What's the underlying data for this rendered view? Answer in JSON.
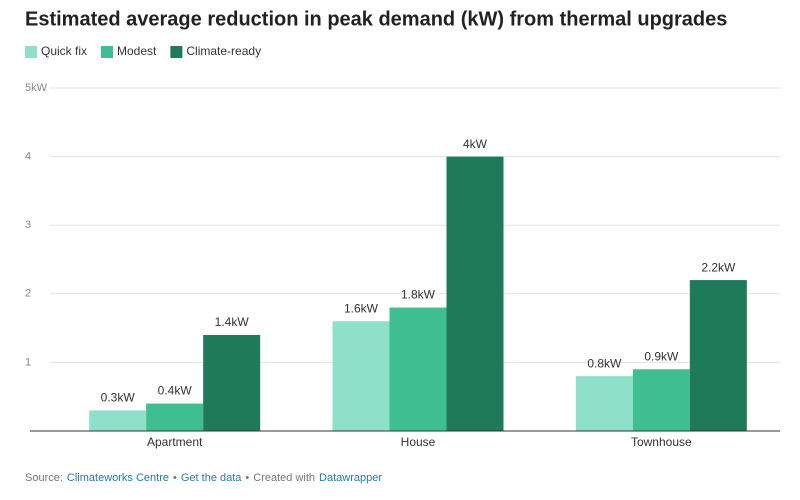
{
  "chart_data": {
    "type": "bar",
    "title": "Estimated average reduction in peak demand (kW) from thermal upgrades",
    "categories": [
      "Apartment",
      "House",
      "Townhouse"
    ],
    "series": [
      {
        "name": "Quick fix",
        "color": "#8fe0c8",
        "values": [
          0.3,
          1.6,
          0.8
        ],
        "value_labels": [
          "0.3kW",
          "1.6kW",
          "0.8kW"
        ]
      },
      {
        "name": "Modest",
        "color": "#3fbe91",
        "values": [
          0.4,
          1.8,
          0.9
        ],
        "value_labels": [
          "0.4kW",
          "1.8kW",
          "0.9kW"
        ]
      },
      {
        "name": "Climate-ready",
        "color": "#1f7a5a",
        "values": [
          1.4,
          4,
          2.2
        ],
        "value_labels": [
          "1.4kW",
          "4kW",
          "2.2kW"
        ]
      }
    ],
    "ylim": [
      0,
      5
    ],
    "yticks": [
      1,
      2,
      3,
      4,
      {
        "value": 5,
        "label": "5kW"
      }
    ],
    "grid": true,
    "legend": "top-left",
    "footer": [
      "Source:",
      "Climateworks Centre",
      "•",
      "Get the data",
      "•",
      "Created with",
      "Datawrapper"
    ]
  }
}
